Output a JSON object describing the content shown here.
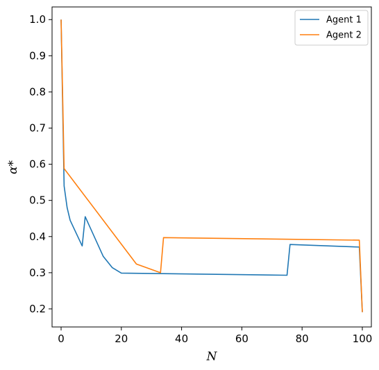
{
  "chart_data": {
    "type": "line",
    "title": "",
    "xlabel": "N",
    "ylabel": "α*",
    "xlim": [
      -3,
      103
    ],
    "ylim": [
      0.15,
      1.035
    ],
    "xticks": [
      0,
      20,
      40,
      60,
      80,
      100
    ],
    "yticks": [
      0.2,
      0.3,
      0.4,
      0.5,
      0.6,
      0.7,
      0.8,
      0.9,
      1.0
    ],
    "ytick_labels": [
      "0.2",
      "0.3",
      "0.4",
      "0.5",
      "0.6",
      "0.7",
      "0.8",
      "0.9",
      "1.0"
    ],
    "grid": false,
    "legend": "top-right",
    "series": [
      {
        "name": "Agent 1",
        "color": "#1f77b4",
        "points": [
          [
            0,
            1.0
          ],
          [
            1,
            0.54
          ],
          [
            2,
            0.48
          ],
          [
            3,
            0.445
          ],
          [
            7,
            0.374
          ],
          [
            8,
            0.455
          ],
          [
            14,
            0.345
          ],
          [
            17,
            0.314
          ],
          [
            20,
            0.299
          ],
          [
            75,
            0.293
          ],
          [
            76,
            0.378
          ],
          [
            99,
            0.371
          ],
          [
            100,
            0.191
          ]
        ]
      },
      {
        "name": "Agent 2",
        "color": "#ff7f0e",
        "points": [
          [
            0,
            1.0
          ],
          [
            1,
            0.588
          ],
          [
            25,
            0.324
          ],
          [
            33,
            0.3
          ],
          [
            34,
            0.397
          ],
          [
            99,
            0.39
          ],
          [
            100,
            0.191
          ]
        ]
      }
    ]
  }
}
